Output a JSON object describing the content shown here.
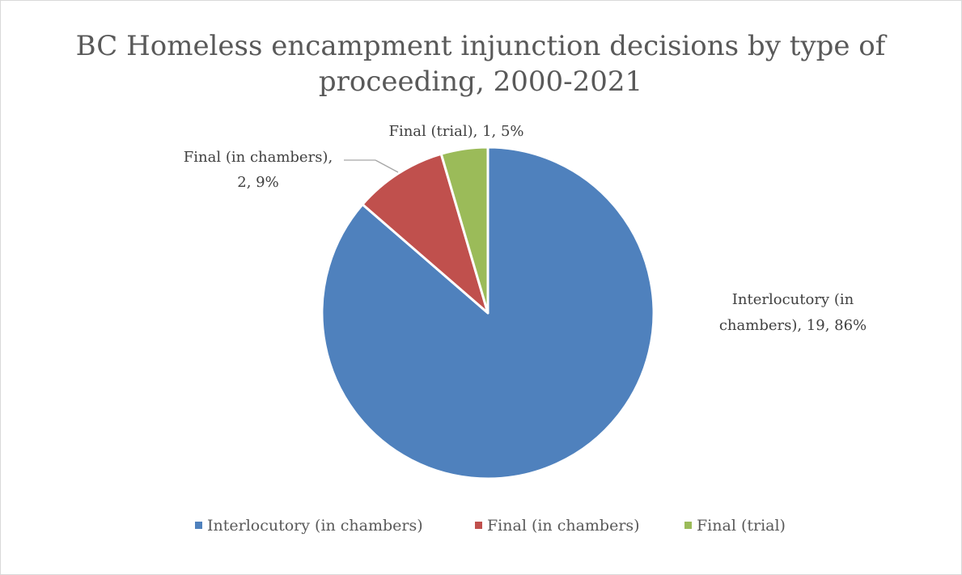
{
  "chart_data": {
    "type": "pie",
    "title": "BC Homeless encampment injunction decisions by type of proceeding, 2000-2021",
    "title_lines": [
      "BC Homeless encampment injunction decisions by type of",
      "proceeding, 2000-2021"
    ],
    "categories": [
      "Interlocutory (in chambers)",
      "Final (in chambers)",
      "Final (trial)"
    ],
    "values": [
      19,
      2,
      1
    ],
    "percentages": [
      "86%",
      "9%",
      "5%"
    ],
    "colors": [
      "#4f81bd",
      "#c0504d",
      "#9bbb59"
    ],
    "data_labels": [
      [
        "Interlocutory (in",
        "chambers), 19, 86%"
      ],
      [
        "Final (in chambers),",
        "2, 9%"
      ],
      [
        "Final (trial), 1, 5%"
      ]
    ],
    "legend": {
      "position": "bottom",
      "entries": [
        "Interlocutory (in chambers)",
        "Final (in chambers)",
        "Final (trial)"
      ]
    }
  }
}
